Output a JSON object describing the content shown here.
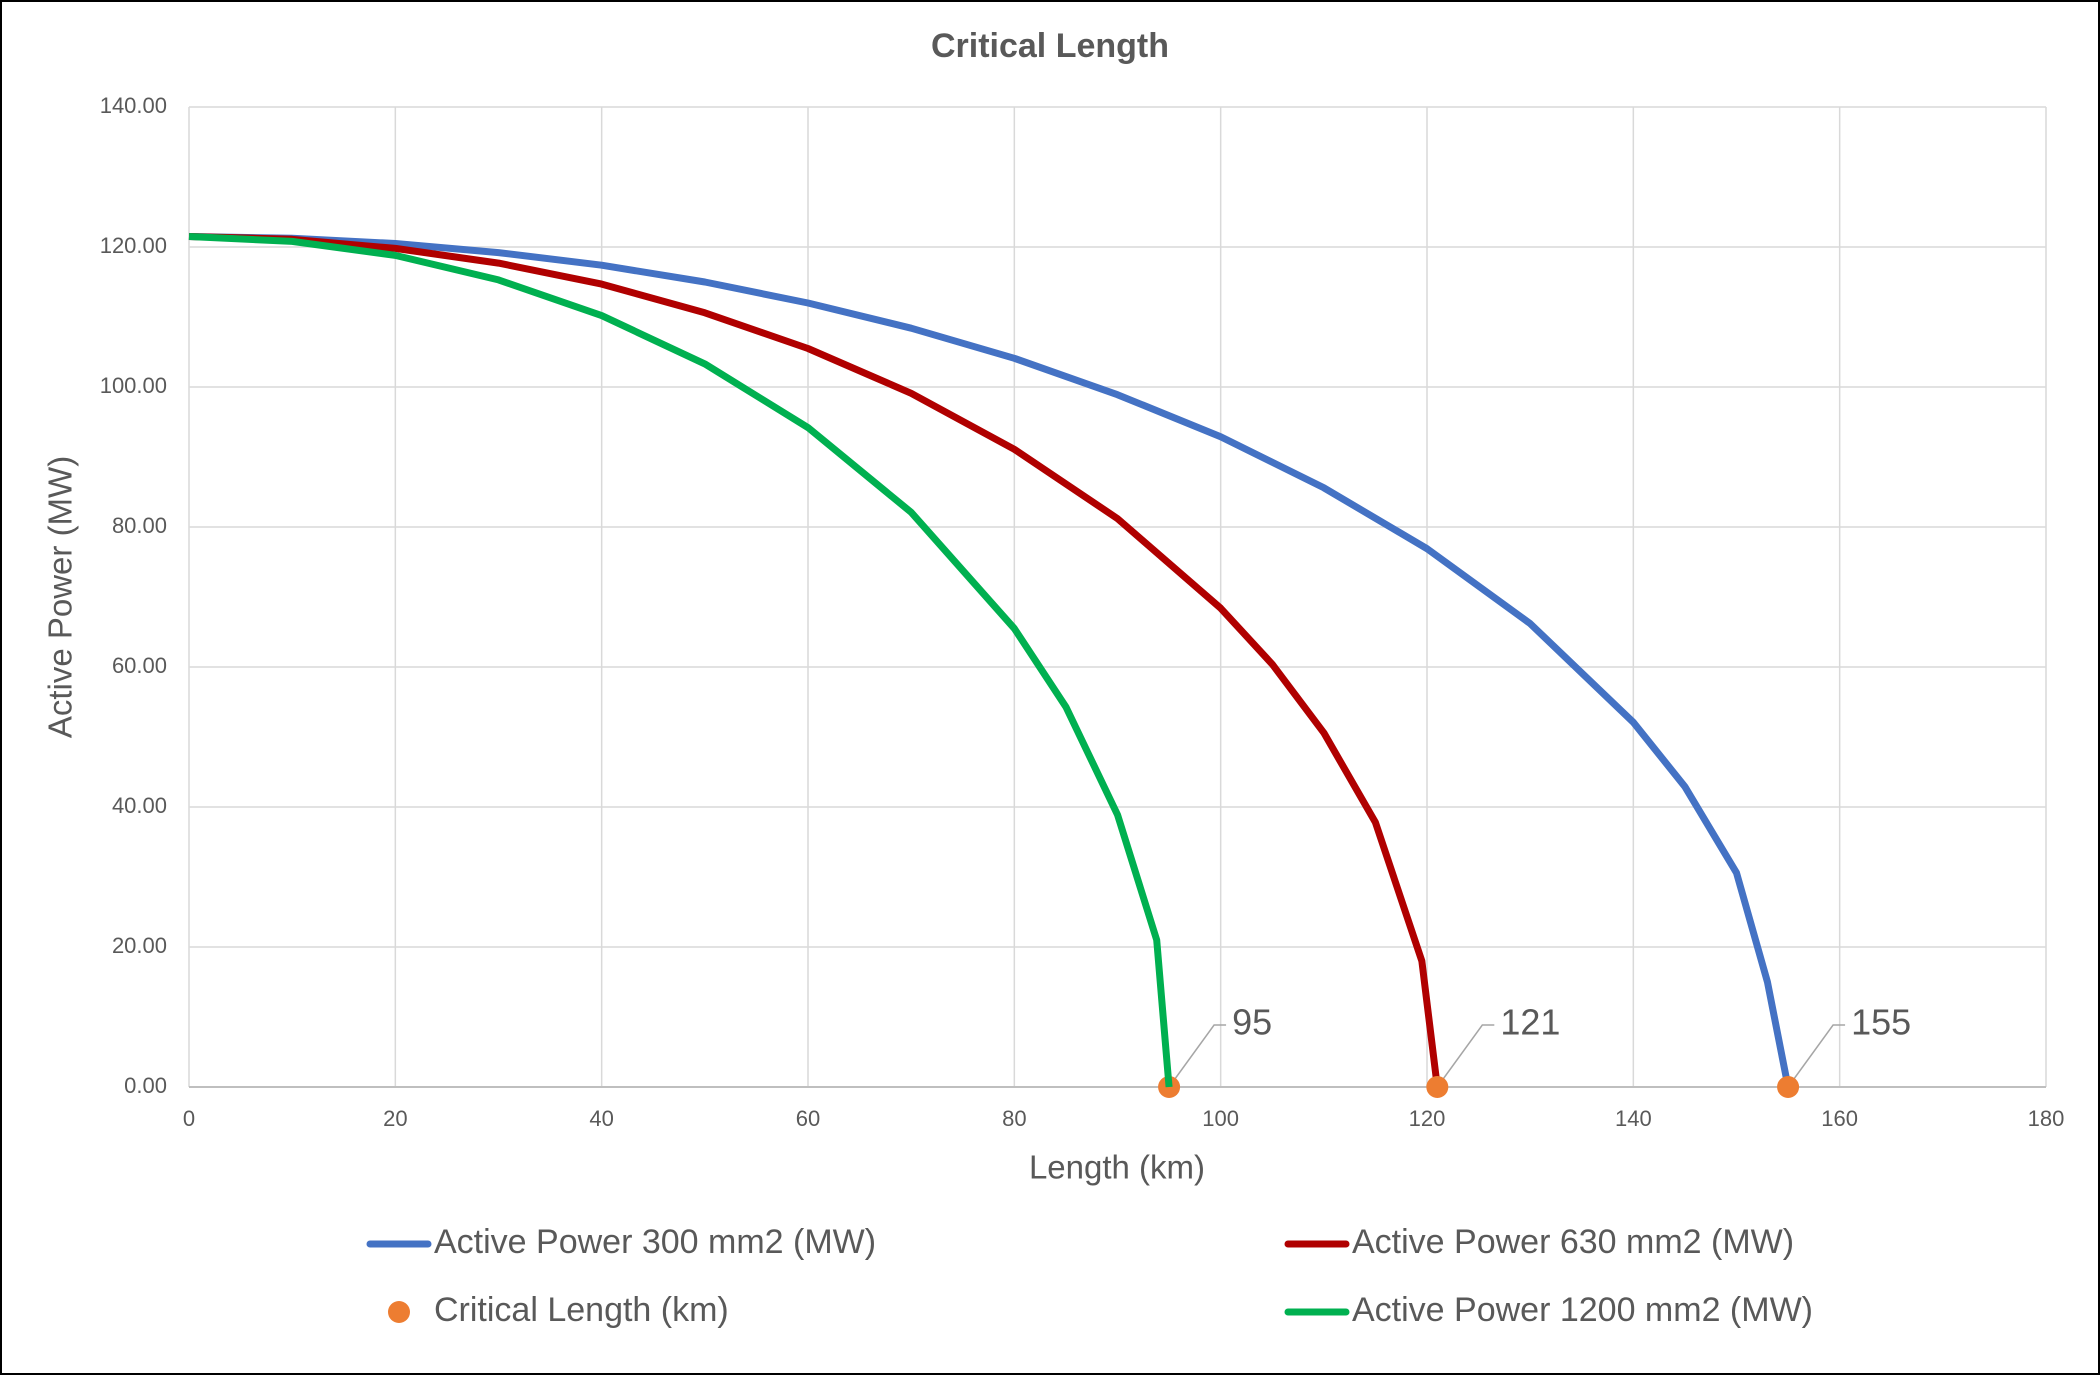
{
  "chart_data": {
    "type": "line",
    "title": "Critical Length",
    "x_label": "Length (km)",
    "y_label": "Active Power (MW)",
    "xlim": [
      0,
      180
    ],
    "xticks": [
      0,
      20,
      40,
      60,
      80,
      100,
      120,
      140,
      160,
      180
    ],
    "ylim": [
      0,
      140
    ],
    "yticks": [
      {
        "value": 0,
        "label": "0.00"
      },
      {
        "value": 20,
        "label": "20.00"
      },
      {
        "value": 40,
        "label": "40.00"
      },
      {
        "value": 60,
        "label": "60.00"
      },
      {
        "value": 80,
        "label": "80.00"
      },
      {
        "value": 100,
        "label": "100.00"
      },
      {
        "value": 120,
        "label": "120.00"
      },
      {
        "value": 140,
        "label": "140.00"
      }
    ],
    "grid": true,
    "legend": "bottom",
    "series": [
      {
        "name": "Active Power 300 mm2 (MW)",
        "color": "#4472c4",
        "style": "line",
        "x": [
          0,
          10,
          20,
          30,
          40,
          50,
          60,
          70,
          80,
          90,
          100,
          110,
          120,
          130,
          140,
          145,
          150,
          153,
          155
        ],
        "values": [
          121.5,
          121.25,
          120.5,
          119.2,
          117.4,
          115.0,
          112.0,
          108.4,
          104.1,
          98.9,
          92.9,
          85.6,
          76.9,
          66.2,
          52.1,
          42.9,
          30.6,
          15,
          0
        ]
      },
      {
        "name": "Active Power 630 mm2 (MW)",
        "color": "#b00000",
        "style": "line",
        "x": [
          0,
          10,
          20,
          30,
          40,
          50,
          60,
          70,
          80,
          90,
          100,
          105,
          110,
          115,
          119.5,
          121
        ],
        "values": [
          121.5,
          121.1,
          119.8,
          117.7,
          114.7,
          110.6,
          105.5,
          99.1,
          91.1,
          81.2,
          68.4,
          60.4,
          50.6,
          37.8,
          18,
          0
        ]
      },
      {
        "name": "Critical Length (km)",
        "color": "#ed7d31",
        "style": "marker",
        "data_labels": true,
        "x": [
          95,
          121,
          155
        ],
        "values": [
          0,
          0,
          0
        ]
      },
      {
        "name": "Active Power 1200 mm2 (MW)",
        "color": "#00b050",
        "style": "line",
        "x": [
          0,
          10,
          20,
          30,
          40,
          50,
          60,
          70,
          80,
          85,
          90,
          93.8,
          95
        ],
        "values": [
          121.5,
          120.8,
          118.8,
          115.3,
          110.2,
          103.3,
          94.2,
          82.1,
          65.5,
          54.3,
          38.9,
          21,
          0
        ]
      }
    ]
  }
}
